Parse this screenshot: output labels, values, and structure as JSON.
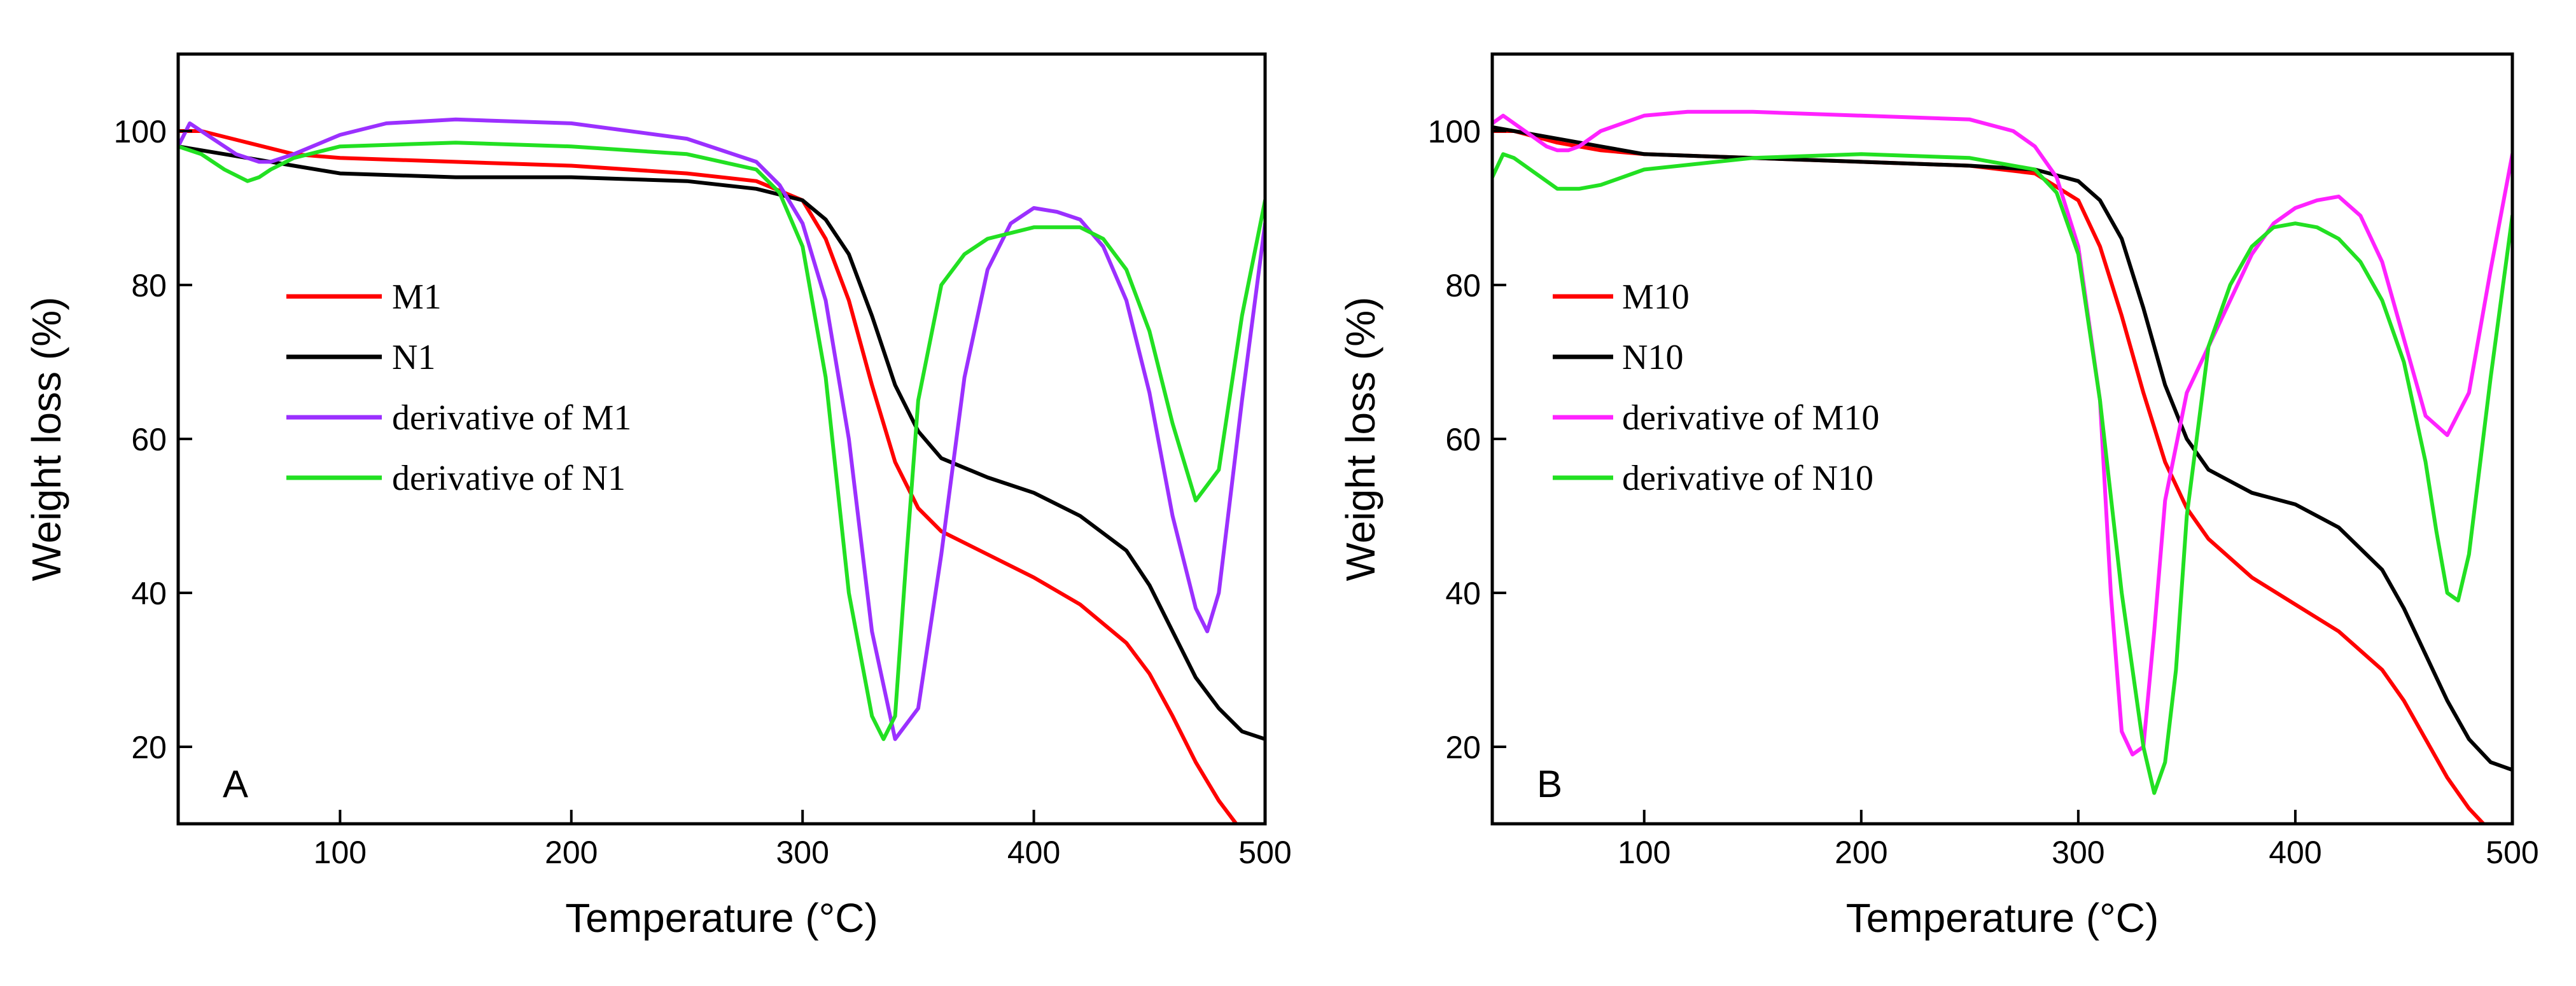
{
  "chart_data": [
    {
      "type": "line",
      "panel_label": "A",
      "xlabel": "Temperature (°C)",
      "ylabel": "Weight loss (%)",
      "xlim": [
        30,
        500
      ],
      "ylim": [
        10,
        110
      ],
      "xticks": [
        100,
        200,
        300,
        400,
        500
      ],
      "yticks": [
        20,
        40,
        60,
        80,
        100
      ],
      "grid": false,
      "legend_position": "center-left",
      "series": [
        {
          "name": "M1",
          "color": "#ff0000",
          "x": [
            30,
            40,
            60,
            80,
            100,
            150,
            200,
            250,
            280,
            300,
            310,
            320,
            330,
            340,
            350,
            360,
            380,
            400,
            420,
            440,
            450,
            460,
            470,
            480,
            490
          ],
          "y": [
            100,
            100,
            98.5,
            97,
            96.5,
            96,
            95.5,
            94.5,
            93.5,
            91,
            86,
            78,
            67,
            57,
            51,
            48,
            45,
            42,
            38.5,
            33.5,
            29.5,
            24,
            18,
            13,
            9
          ]
        },
        {
          "name": "N1",
          "color": "#000000",
          "x": [
            30,
            50,
            80,
            100,
            150,
            200,
            250,
            280,
            300,
            310,
            320,
            330,
            340,
            350,
            360,
            380,
            400,
            420,
            440,
            450,
            460,
            470,
            480,
            490,
            500
          ],
          "y": [
            98,
            97,
            95.5,
            94.5,
            94,
            94,
            93.5,
            92.5,
            91,
            88.5,
            84,
            76,
            67,
            61,
            57.5,
            55,
            53,
            50,
            45.5,
            41,
            35,
            29,
            25,
            22,
            21
          ]
        },
        {
          "name": "derivative of M1",
          "color": "#9b30ff",
          "x": [
            30,
            35,
            40,
            45,
            55,
            65,
            70,
            80,
            100,
            120,
            150,
            200,
            250,
            280,
            290,
            300,
            310,
            320,
            330,
            340,
            350,
            360,
            370,
            380,
            390,
            400,
            410,
            420,
            430,
            440,
            450,
            460,
            470,
            475,
            480,
            490,
            500
          ],
          "y": [
            98,
            101,
            100,
            99,
            97,
            96,
            96,
            97,
            99.5,
            101,
            101.5,
            101,
            99,
            96,
            93,
            88,
            78,
            60,
            35,
            21,
            25,
            45,
            68,
            82,
            88,
            90,
            89.5,
            88.5,
            85,
            78,
            66,
            50,
            38,
            35,
            40,
            65,
            88
          ]
        },
        {
          "name": "derivative of N1",
          "color": "#22e022",
          "x": [
            30,
            40,
            50,
            60,
            65,
            70,
            80,
            100,
            150,
            200,
            250,
            280,
            290,
            300,
            310,
            320,
            330,
            335,
            340,
            345,
            350,
            360,
            370,
            380,
            400,
            420,
            430,
            440,
            450,
            460,
            470,
            480,
            490,
            500
          ],
          "y": [
            98,
            97,
            95,
            93.5,
            94,
            95,
            96.5,
            98,
            98.5,
            98,
            97,
            95,
            92,
            85,
            68,
            40,
            24,
            21,
            24,
            45,
            65,
            80,
            84,
            86,
            87.5,
            87.5,
            86,
            82,
            74,
            62,
            52,
            56,
            76,
            91
          ]
        }
      ]
    },
    {
      "type": "line",
      "panel_label": "B",
      "xlabel": "Temperature (°C)",
      "ylabel": "Weight loss (%)",
      "xlim": [
        30,
        500
      ],
      "ylim": [
        10,
        110
      ],
      "xticks": [
        100,
        200,
        300,
        400,
        500
      ],
      "yticks": [
        20,
        40,
        60,
        80,
        100
      ],
      "grid": false,
      "legend_position": "center-left",
      "series": [
        {
          "name": "M10",
          "color": "#ff0000",
          "x": [
            30,
            40,
            60,
            80,
            100,
            150,
            200,
            250,
            280,
            300,
            310,
            320,
            330,
            340,
            350,
            360,
            380,
            400,
            420,
            440,
            450,
            460,
            470,
            480,
            490
          ],
          "y": [
            100,
            100,
            98.5,
            97.5,
            97,
            96.5,
            96,
            95.5,
            94.5,
            91,
            85,
            76,
            66,
            57,
            51,
            47,
            42,
            38.5,
            35,
            30,
            26,
            21,
            16,
            12,
            9
          ]
        },
        {
          "name": "N10",
          "color": "#000000",
          "x": [
            30,
            50,
            80,
            100,
            150,
            200,
            250,
            280,
            300,
            310,
            320,
            330,
            340,
            350,
            360,
            380,
            400,
            420,
            440,
            450,
            460,
            470,
            480,
            490,
            500
          ],
          "y": [
            100.5,
            99.5,
            98,
            97,
            96.5,
            96,
            95.5,
            95,
            93.5,
            91,
            86,
            77,
            67,
            60,
            56,
            53,
            51.5,
            48.5,
            43,
            38,
            32,
            26,
            21,
            18,
            17
          ]
        },
        {
          "name": "derivative of M10",
          "color": "#ff22ff",
          "x": [
            30,
            35,
            45,
            55,
            60,
            65,
            70,
            80,
            100,
            120,
            150,
            200,
            250,
            270,
            280,
            290,
            300,
            310,
            315,
            320,
            325,
            330,
            335,
            340,
            350,
            360,
            370,
            380,
            390,
            400,
            410,
            420,
            430,
            440,
            450,
            460,
            470,
            480,
            490,
            500
          ],
          "y": [
            101,
            102,
            100,
            98,
            97.5,
            97.5,
            98,
            100,
            102,
            102.5,
            102.5,
            102,
            101.5,
            100,
            98,
            94,
            85,
            65,
            40,
            22,
            19,
            20,
            35,
            52,
            66,
            72,
            78,
            84,
            88,
            90,
            91,
            91.5,
            89,
            83,
            73,
            63,
            60.5,
            66,
            82,
            97
          ]
        },
        {
          "name": "derivative of N10",
          "color": "#22e022",
          "x": [
            30,
            35,
            40,
            50,
            60,
            70,
            80,
            100,
            150,
            200,
            250,
            280,
            290,
            300,
            310,
            320,
            330,
            335,
            340,
            345,
            350,
            360,
            370,
            380,
            390,
            400,
            410,
            420,
            430,
            440,
            450,
            460,
            465,
            470,
            475,
            480,
            490,
            500
          ],
          "y": [
            94,
            97,
            96.5,
            94.5,
            92.5,
            92.5,
            93,
            95,
            96.5,
            97,
            96.5,
            95,
            92,
            84,
            65,
            40,
            20,
            14,
            18,
            30,
            50,
            72,
            80,
            85,
            87.5,
            88,
            87.5,
            86,
            83,
            78,
            70,
            57,
            48,
            40,
            39,
            45,
            68,
            89
          ]
        }
      ]
    }
  ]
}
